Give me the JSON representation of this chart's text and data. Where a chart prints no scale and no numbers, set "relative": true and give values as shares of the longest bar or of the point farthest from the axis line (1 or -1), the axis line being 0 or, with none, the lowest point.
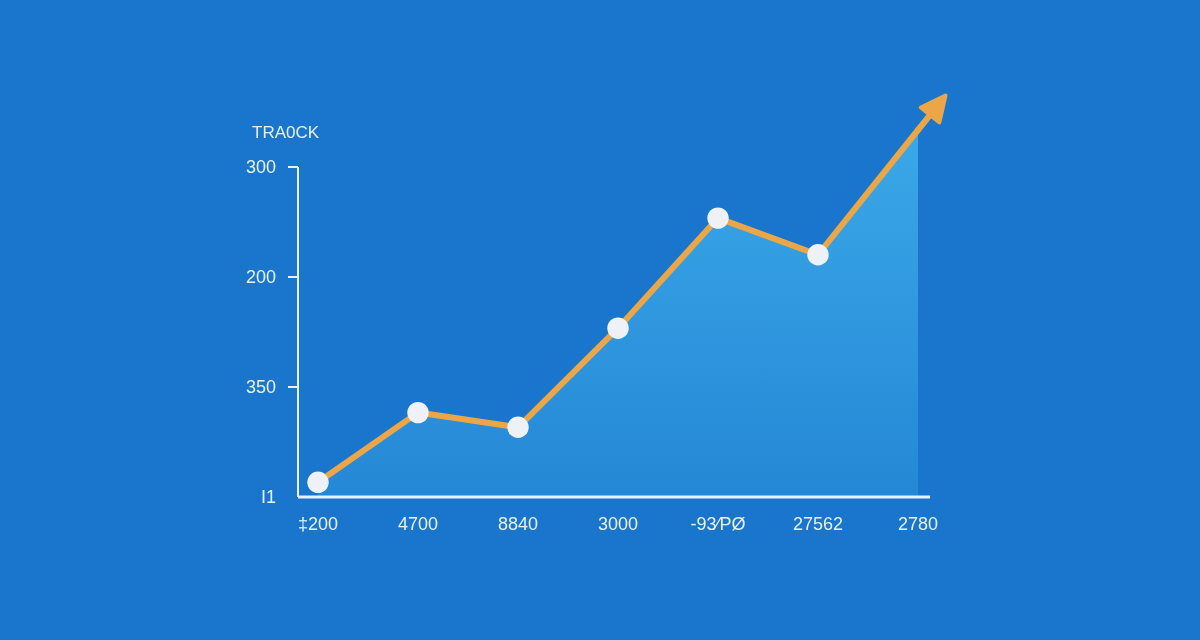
{
  "chart_data": {
    "type": "area",
    "ylabel": "TRA0CK",
    "relative": true,
    "categories": [
      "‡200",
      "4700",
      "8840",
      "3000",
      "-93⁄РØ",
      "27562",
      "2780"
    ],
    "annotations": [
      "I1",
      "350",
      "200",
      "300"
    ],
    "grid": false,
    "legend": false,
    "series": [
      {
        "color": "#eba648",
        "values": [
          0.04,
          0.23,
          0.19,
          0.46,
          0.76,
          0.66,
          1
        ]
      },
      {
        "type": "scatter",
        "color": "#eef2f6",
        "marker": "circle",
        "values": [
          0.04,
          0.23,
          0.19,
          0.46,
          0.76,
          0.66,
          null
        ]
      }
    ]
  }
}
